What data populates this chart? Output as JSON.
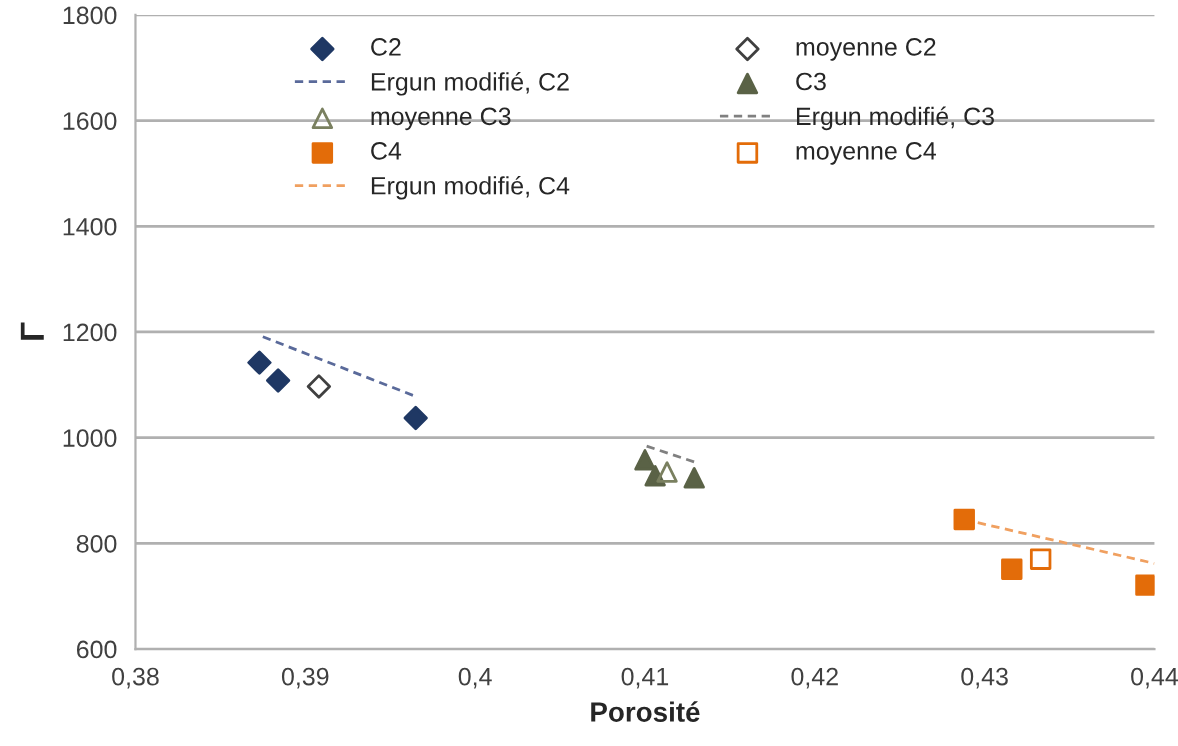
{
  "chart_data": {
    "type": "scatter",
    "xlabel": "Porosité",
    "ylabel": "Γ",
    "xlim": [
      0.38,
      0.44
    ],
    "xticks": [
      {
        "value": 0.38,
        "label": "0,38"
      },
      {
        "value": 0.39,
        "label": "0,39"
      },
      {
        "value": 0.4,
        "label": "0,4"
      },
      {
        "value": 0.41,
        "label": "0,41"
      },
      {
        "value": 0.42,
        "label": "0,42"
      },
      {
        "value": 0.43,
        "label": "0,43"
      },
      {
        "value": 0.44,
        "label": "0,44"
      }
    ],
    "ylim": [
      600,
      1800
    ],
    "yticks": [
      600,
      800,
      1000,
      1200,
      1400,
      1600,
      1800
    ],
    "grid": "y",
    "legend": "top",
    "series": [
      {
        "name": "C2",
        "marker": "diamond",
        "color": "#1f3864",
        "x": [
          0.3873,
          0.3884,
          0.3965
        ],
        "values": [
          1142,
          1108,
          1037
        ]
      },
      {
        "name": "moyenne C2",
        "marker": "diamond",
        "color": "#404040",
        "x": [
          0.3908
        ],
        "values": [
          1097
        ]
      },
      {
        "name": "Ergun modifié, C2",
        "type": "line",
        "line_style": "dashed",
        "color": "#5a6a9a",
        "x": [
          0.3875,
          0.3965
        ],
        "values": [
          1191,
          1078
        ]
      },
      {
        "name": "C3",
        "marker": "triangle",
        "color": "#5a6246",
        "x": [
          0.41,
          0.4106,
          0.4129
        ],
        "values": [
          958,
          928,
          924
        ]
      },
      {
        "name": "moyenne C3",
        "marker": "triangle",
        "color": "#7a8060",
        "x": [
          0.4113
        ],
        "values": [
          935
        ]
      },
      {
        "name": "Ergun modifié, C3",
        "type": "line",
        "line_style": "dashed",
        "color": "#808080",
        "x": [
          0.4101,
          0.4129
        ],
        "values": [
          984,
          954
        ]
      },
      {
        "name": "C4",
        "marker": "square",
        "color": "#e36c09",
        "x": [
          0.4288,
          0.4316,
          0.4395
        ],
        "values": [
          845,
          751,
          721
        ]
      },
      {
        "name": "moyenne C4",
        "marker": "square",
        "color": "#e36c09",
        "x": [
          0.4333
        ],
        "values": [
          770
        ]
      },
      {
        "name": "Ergun modifié, C4",
        "type": "line",
        "line_style": "dashed",
        "color": "#f0a060",
        "x": [
          0.4288,
          0.44
        ],
        "values": [
          845,
          762
        ]
      }
    ]
  }
}
